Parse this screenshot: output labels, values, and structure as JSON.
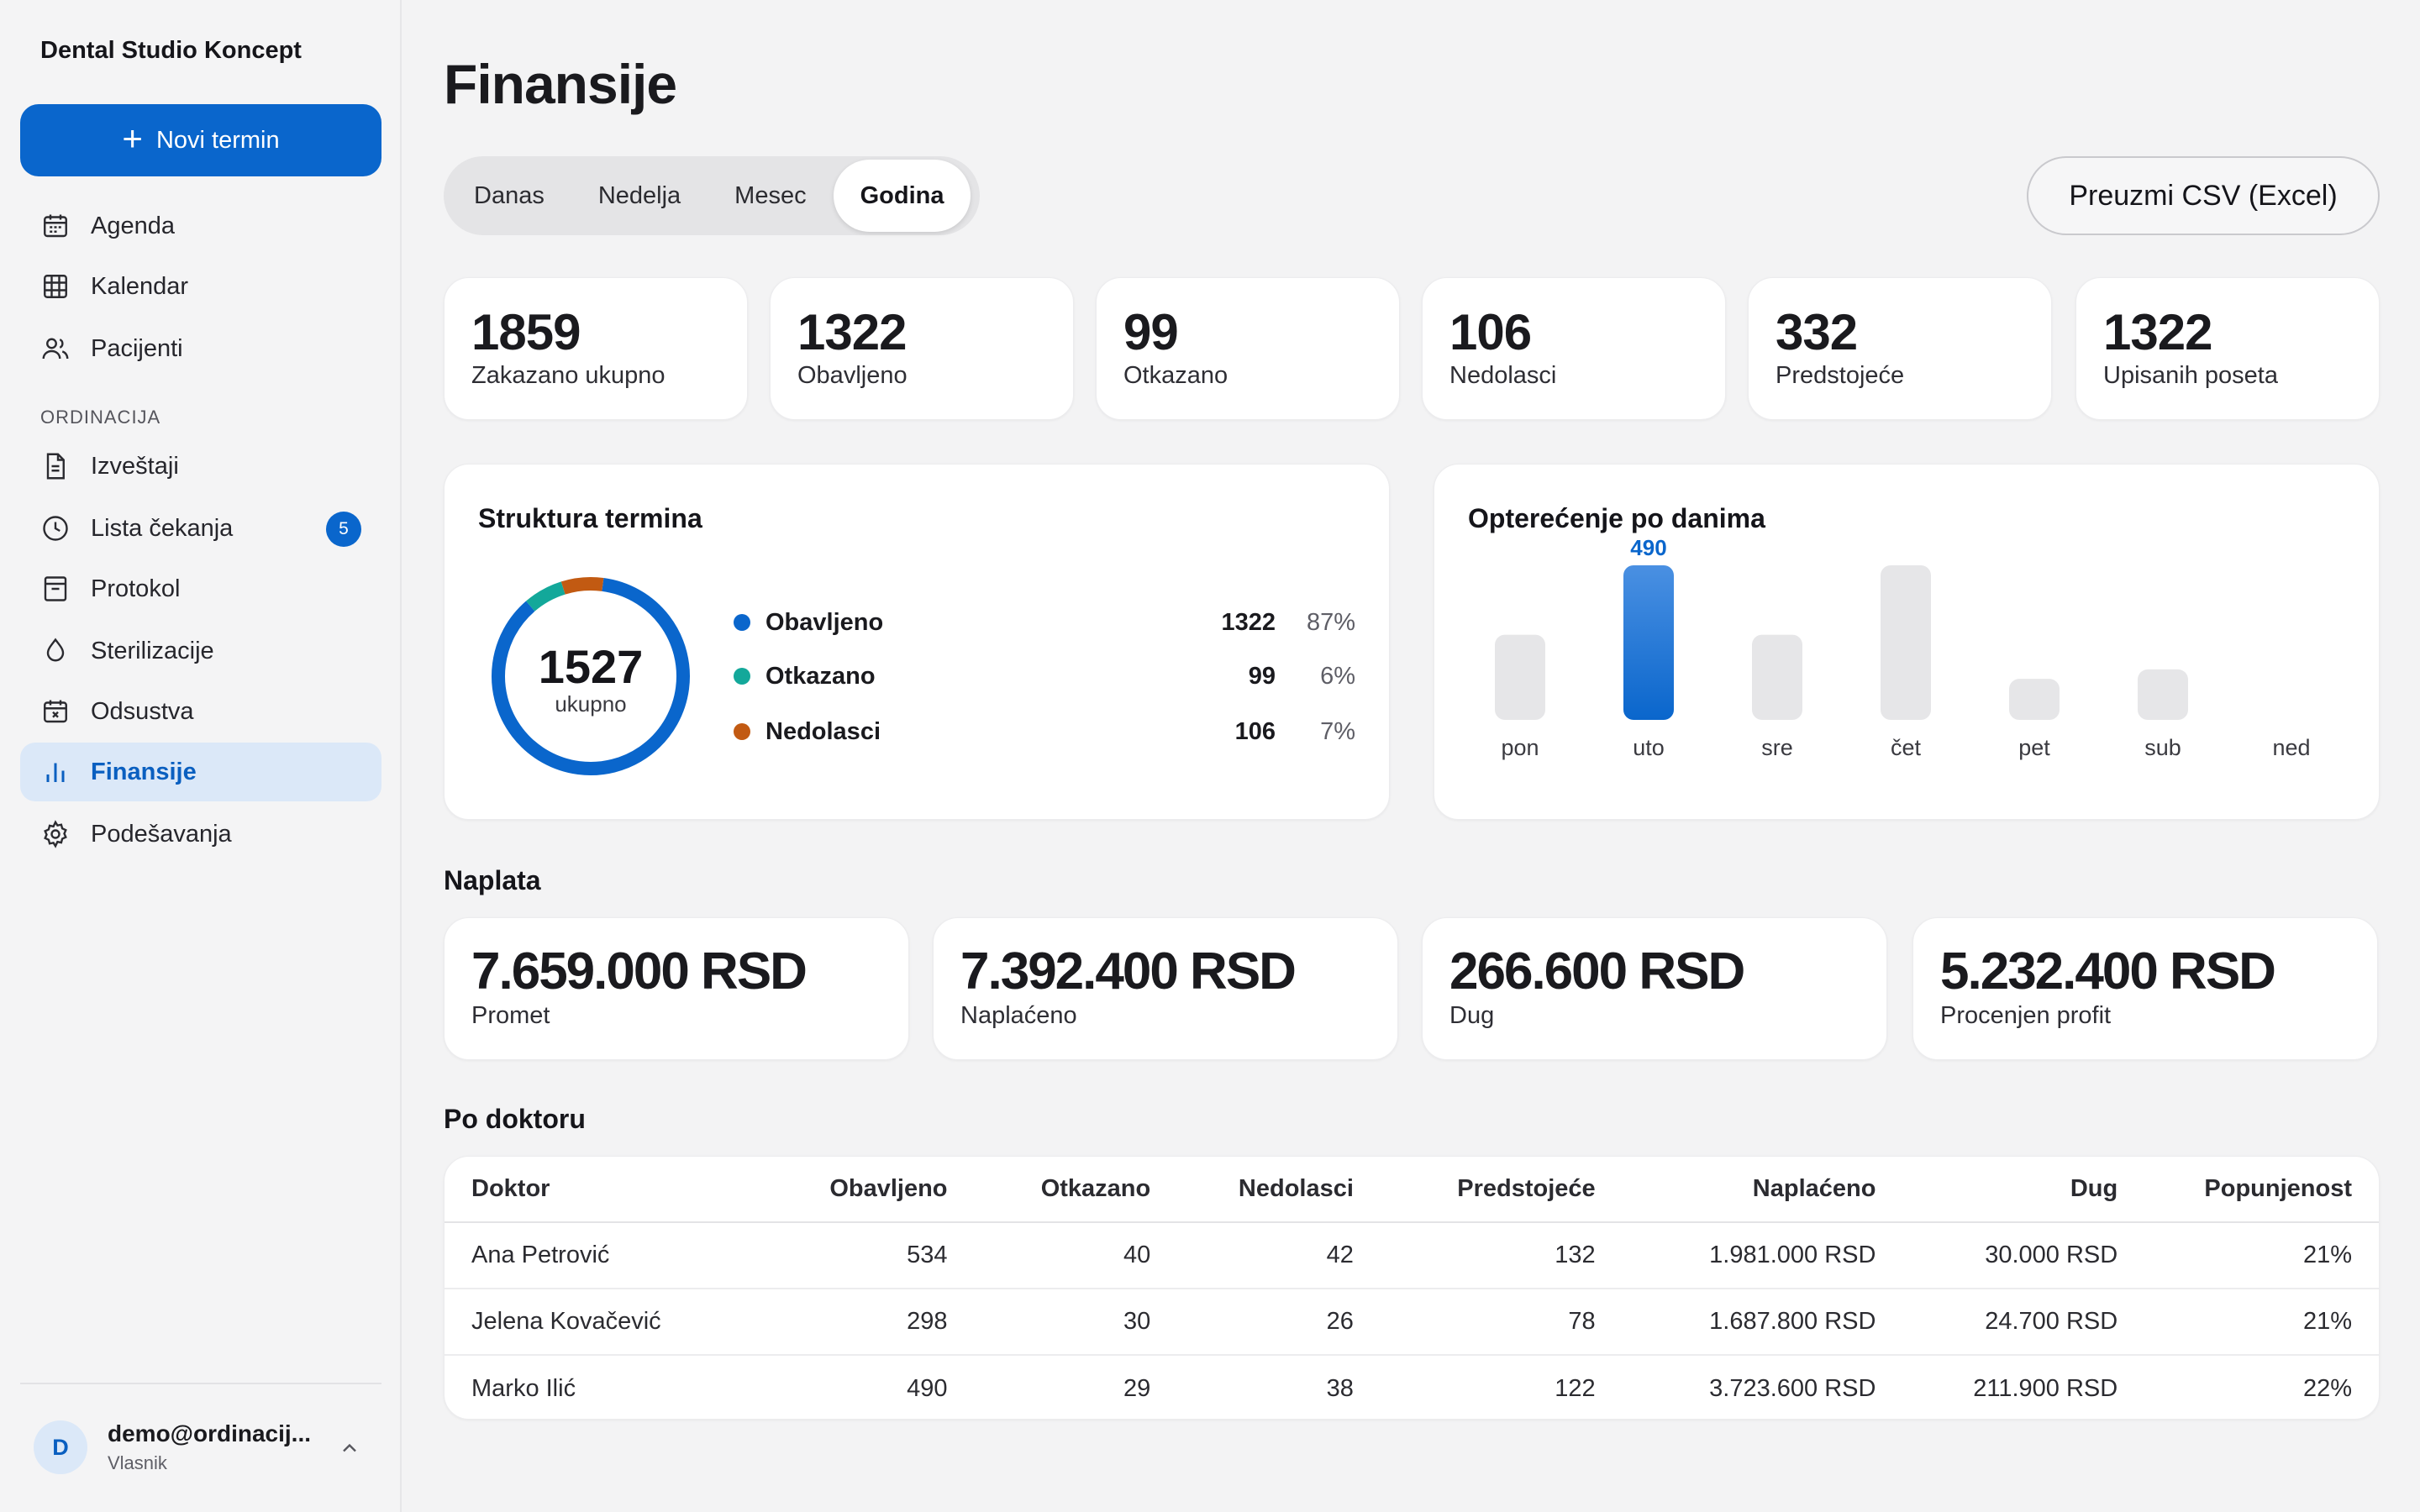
{
  "sidebar": {
    "brand": "Dental Studio Koncept",
    "new_button": "Novi termin",
    "items": [
      {
        "label": "Agenda",
        "icon": "calendar-icon"
      },
      {
        "label": "Kalendar",
        "icon": "grid-icon"
      },
      {
        "label": "Pacijenti",
        "icon": "users-icon"
      }
    ],
    "section_label": "ORDINACIJA",
    "section_items": [
      {
        "label": "Izveštaji",
        "icon": "document-icon"
      },
      {
        "label": "Lista čekanja",
        "icon": "clock-icon",
        "badge": "5"
      },
      {
        "label": "Protokol",
        "icon": "archive-icon"
      },
      {
        "label": "Sterilizacije",
        "icon": "droplet-icon"
      },
      {
        "label": "Odsustva",
        "icon": "calendar-x-icon"
      },
      {
        "label": "Finansije",
        "icon": "bar-chart-icon",
        "active": true
      },
      {
        "label": "Podešavanja",
        "icon": "gear-icon"
      }
    ],
    "user": {
      "initial": "D",
      "email": "demo@ordinacij...",
      "role": "Vlasnik"
    }
  },
  "page": {
    "title": "Finansije",
    "periods": [
      "Danas",
      "Nedelja",
      "Mesec",
      "Godina"
    ],
    "active_period": "Godina",
    "csv_button": "Preuzmi CSV (Excel)"
  },
  "stats": [
    {
      "value": "1859",
      "label": "Zakazano ukupno"
    },
    {
      "value": "1322",
      "label": "Obavljeno"
    },
    {
      "value": "99",
      "label": "Otkazano"
    },
    {
      "value": "106",
      "label": "Nedolasci"
    },
    {
      "value": "332",
      "label": "Predstojeće"
    },
    {
      "value": "1322",
      "label": "Upisanih poseta"
    }
  ],
  "structure": {
    "title": "Struktura termina",
    "total": "1527",
    "total_label": "ukupno",
    "colors": {
      "Obavljeno": "#0a66cc",
      "Otkazano": "#13a89a",
      "Nedolasci": "#c25a12"
    },
    "legend": [
      {
        "name": "Obavljeno",
        "count": "1322",
        "pct": "87%"
      },
      {
        "name": "Otkazano",
        "count": "99",
        "pct": "6%"
      },
      {
        "name": "Nedolasci",
        "count": "106",
        "pct": "7%"
      }
    ]
  },
  "chart_data": {
    "type": "bar",
    "title": "Opterećenje po danima",
    "categories": [
      "pon",
      "uto",
      "sre",
      "čet",
      "pet",
      "sub",
      "ned"
    ],
    "values": [
      270,
      490,
      270,
      490,
      130,
      160,
      0
    ],
    "highlight_index": 1,
    "highlight_label": "490",
    "highlight_color": "#0a66cc",
    "bar_color": "#e6e6e8",
    "ylim": [
      0,
      490
    ]
  },
  "billing": {
    "title": "Naplata",
    "cards": [
      {
        "value": "7.659.000 RSD",
        "label": "Promet"
      },
      {
        "value": "7.392.400 RSD",
        "label": "Naplaćeno"
      },
      {
        "value": "266.600 RSD",
        "label": "Dug"
      },
      {
        "value": "5.232.400 RSD",
        "label": "Procenjen profit"
      }
    ]
  },
  "doctors": {
    "title": "Po doktoru",
    "columns": [
      "Doktor",
      "Obavljeno",
      "Otkazano",
      "Nedolasci",
      "Predstojeće",
      "Naplaćeno",
      "Dug",
      "Popunjenost"
    ],
    "rows": [
      [
        "Ana Petrović",
        "534",
        "40",
        "42",
        "132",
        "1.981.000 RSD",
        "30.000 RSD",
        "21%"
      ],
      [
        "Jelena Kovačević",
        "298",
        "30",
        "26",
        "78",
        "1.687.800 RSD",
        "24.700 RSD",
        "21%"
      ],
      [
        "Marko Ilić",
        "490",
        "29",
        "38",
        "122",
        "3.723.600 RSD",
        "211.900 RSD",
        "22%"
      ]
    ]
  }
}
